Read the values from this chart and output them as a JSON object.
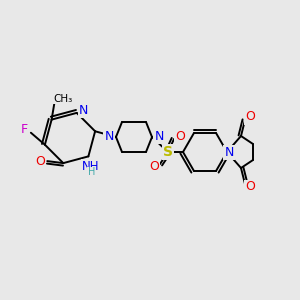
{
  "bg_color": "#e8e8e8",
  "atom_colors": {
    "C": "#000000",
    "N": "#0000ee",
    "O": "#ee0000",
    "F": "#cc00cc",
    "S": "#bbbb00",
    "H": "#44aaaa"
  },
  "bond_color": "#000000",
  "figsize": [
    3.0,
    3.0
  ],
  "dpi": 100
}
